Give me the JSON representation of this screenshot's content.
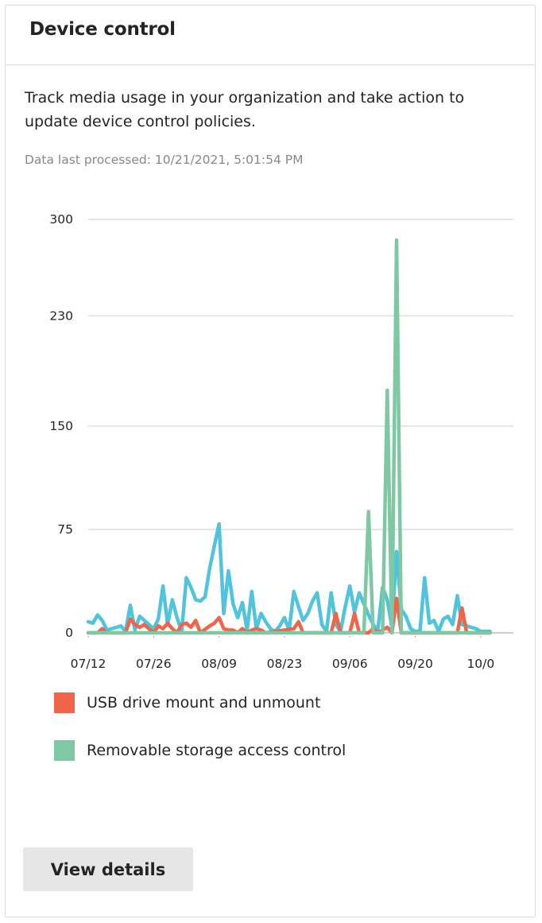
{
  "card": {
    "title": "Device control",
    "description": "Track media usage in your organization and take action to update device control policies.",
    "last_processed": "Data last processed: 10/21/2021, 5:01:54 PM",
    "view_details_label": "View details"
  },
  "colors": {
    "usb": "#f0654a",
    "removable": "#7ec8a4",
    "third_series": "#4fc4dc",
    "gridline": "#d6d6d6",
    "axis": "#b0b0b0"
  },
  "chart_data": {
    "type": "line",
    "ylim": [
      0,
      300
    ],
    "yticks": [
      0,
      75,
      150,
      230,
      300
    ],
    "x_range": [
      0,
      91
    ],
    "xticks": [
      {
        "label": "07/12",
        "x": 0
      },
      {
        "label": "07/26",
        "x": 14
      },
      {
        "label": "08/09",
        "x": 28
      },
      {
        "label": "08/23",
        "x": 42
      },
      {
        "label": "09/06",
        "x": 56
      },
      {
        "label": "09/20",
        "x": 70
      },
      {
        "label": "10/0",
        "x": 84
      }
    ],
    "legend": [
      {
        "name": "USB drive mount and unmount",
        "color": "#f0654a"
      },
      {
        "name": "Removable storage access control",
        "color": "#7ec8a4"
      }
    ],
    "series": [
      {
        "id": "third",
        "color": "#4fc4dc",
        "points": [
          [
            0,
            8
          ],
          [
            1,
            7
          ],
          [
            2,
            13
          ],
          [
            3,
            9
          ],
          [
            4,
            2
          ],
          [
            5,
            3
          ],
          [
            6,
            4
          ],
          [
            7,
            5
          ],
          [
            8,
            1
          ],
          [
            9,
            20
          ],
          [
            10,
            2
          ],
          [
            11,
            12
          ],
          [
            12,
            9
          ],
          [
            13,
            6
          ],
          [
            14,
            3
          ],
          [
            15,
            10
          ],
          [
            16,
            34
          ],
          [
            17,
            6
          ],
          [
            18,
            24
          ],
          [
            19,
            11
          ],
          [
            20,
            1
          ],
          [
            21,
            40
          ],
          [
            22,
            33
          ],
          [
            23,
            24
          ],
          [
            24,
            23
          ],
          [
            25,
            26
          ],
          [
            26,
            47
          ],
          [
            27,
            63
          ],
          [
            28,
            79
          ],
          [
            29,
            14
          ],
          [
            30,
            45
          ],
          [
            31,
            21
          ],
          [
            32,
            11
          ],
          [
            33,
            22
          ],
          [
            34,
            2
          ],
          [
            35,
            30
          ],
          [
            36,
            3
          ],
          [
            37,
            14
          ],
          [
            38,
            8
          ],
          [
            39,
            3
          ],
          [
            40,
            1
          ],
          [
            41,
            5
          ],
          [
            42,
            11
          ],
          [
            43,
            2
          ],
          [
            44,
            30
          ],
          [
            45,
            19
          ],
          [
            46,
            9
          ],
          [
            47,
            14
          ],
          [
            48,
            23
          ],
          [
            49,
            29
          ],
          [
            50,
            6
          ],
          [
            51,
            1
          ],
          [
            52,
            29
          ],
          [
            53,
            6
          ],
          [
            54,
            1
          ],
          [
            55,
            19
          ],
          [
            56,
            34
          ],
          [
            57,
            15
          ],
          [
            58,
            29
          ],
          [
            59,
            21
          ],
          [
            60,
            13
          ],
          [
            61,
            6
          ],
          [
            62,
            2
          ],
          [
            63,
            33
          ],
          [
            64,
            24
          ],
          [
            65,
            4
          ],
          [
            66,
            59
          ],
          [
            67,
            17
          ],
          [
            68,
            12
          ],
          [
            69,
            3
          ],
          [
            70,
            1
          ],
          [
            71,
            1
          ],
          [
            72,
            40
          ],
          [
            73,
            7
          ],
          [
            74,
            9
          ],
          [
            75,
            1
          ],
          [
            76,
            10
          ],
          [
            77,
            12
          ],
          [
            78,
            6
          ],
          [
            79,
            27
          ],
          [
            80,
            6
          ],
          [
            81,
            5
          ],
          [
            82,
            4
          ],
          [
            83,
            3
          ],
          [
            84,
            1
          ],
          [
            85,
            1
          ],
          [
            86,
            1
          ]
        ]
      },
      {
        "id": "usb",
        "color": "#f0654a",
        "points": [
          [
            0,
            0
          ],
          [
            2,
            0
          ],
          [
            3,
            3
          ],
          [
            4,
            0
          ],
          [
            8,
            0
          ],
          [
            9,
            10
          ],
          [
            10,
            6
          ],
          [
            11,
            4
          ],
          [
            12,
            6
          ],
          [
            13,
            3
          ],
          [
            14,
            0
          ],
          [
            15,
            5
          ],
          [
            16,
            3
          ],
          [
            17,
            7
          ],
          [
            18,
            3
          ],
          [
            19,
            0
          ],
          [
            20,
            6
          ],
          [
            21,
            7
          ],
          [
            22,
            4
          ],
          [
            23,
            9
          ],
          [
            24,
            0
          ],
          [
            26,
            5
          ],
          [
            27,
            7
          ],
          [
            28,
            11
          ],
          [
            29,
            3
          ],
          [
            30,
            2
          ],
          [
            31,
            2
          ],
          [
            32,
            0
          ],
          [
            33,
            3
          ],
          [
            34,
            0
          ],
          [
            35,
            2
          ],
          [
            36,
            3
          ],
          [
            37,
            2
          ],
          [
            38,
            0
          ],
          [
            44,
            3
          ],
          [
            45,
            8
          ],
          [
            46,
            0
          ],
          [
            52,
            0
          ],
          [
            53,
            14
          ],
          [
            54,
            0
          ],
          [
            56,
            0
          ],
          [
            57,
            14
          ],
          [
            58,
            0
          ],
          [
            60,
            0
          ],
          [
            61,
            3
          ],
          [
            62,
            0
          ],
          [
            64,
            4
          ],
          [
            65,
            0
          ],
          [
            66,
            25
          ],
          [
            67,
            0
          ],
          [
            79,
            0
          ],
          [
            80,
            18
          ],
          [
            81,
            0
          ],
          [
            86,
            0
          ]
        ]
      },
      {
        "id": "removable",
        "color": "#7ec8a4",
        "points": [
          [
            0,
            0
          ],
          [
            59,
            0
          ],
          [
            60,
            88
          ],
          [
            61,
            0
          ],
          [
            63,
            0
          ],
          [
            64,
            176
          ],
          [
            65,
            0
          ],
          [
            66,
            285
          ],
          [
            67,
            0
          ],
          [
            86,
            0
          ]
        ]
      }
    ]
  }
}
